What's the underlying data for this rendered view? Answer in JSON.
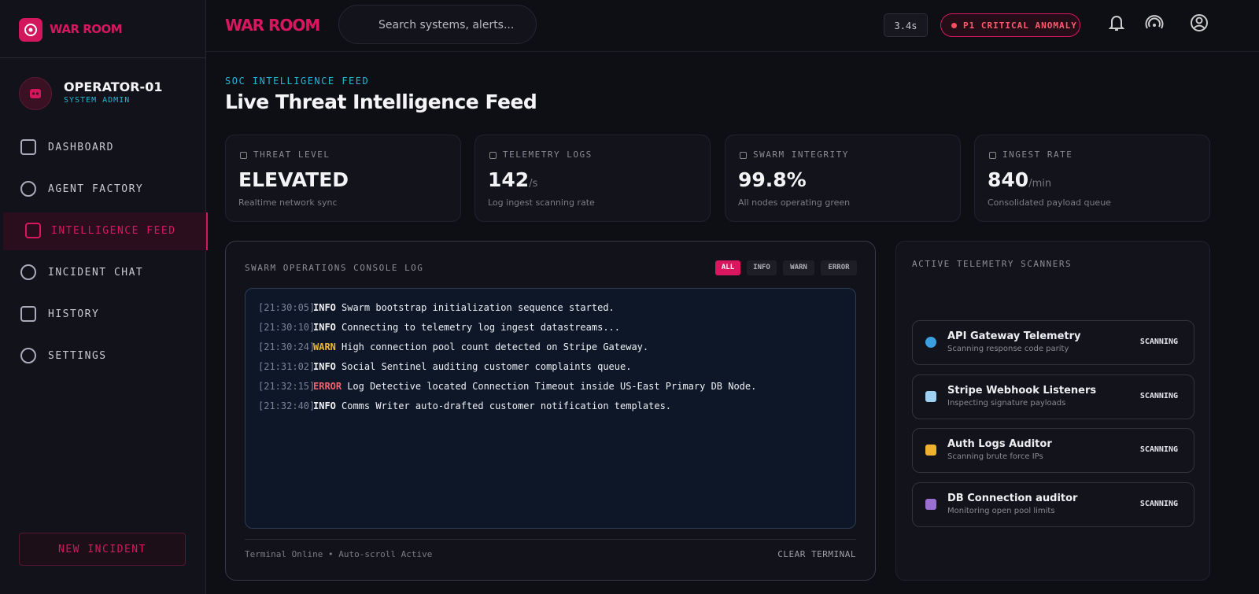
{
  "sidebar": {
    "brand": "WAR ROOM",
    "user": {
      "name": "OPERATOR-01",
      "role": "SYSTEM ADMIN"
    },
    "nav": [
      "DASHBOARD",
      "AGENT FACTORY",
      "INTELLIGENCE FEED",
      "INCIDENT CHAT",
      "HISTORY",
      "SETTINGS"
    ],
    "new_incident": "NEW INCIDENT"
  },
  "topbar": {
    "brand": "WAR ROOM",
    "search_placeholder": "Search systems, alerts...",
    "latency": "3.4s",
    "alert": "P1 CRITICAL ANOMALY"
  },
  "header": {
    "eyebrow": "SOC INTELLIGENCE FEED",
    "title": "Live Threat Intelligence Feed"
  },
  "stats": [
    {
      "label": "THREAT LEVEL",
      "value": "ELEVATED",
      "note": "Realtime network sync"
    },
    {
      "label": "TELEMETRY LOGS",
      "value": 142,
      "unit": "/s",
      "note": "Log ingest scanning rate"
    },
    {
      "label": "SWARM INTEGRITY",
      "value": "99.8%",
      "note": "All nodes operating green"
    },
    {
      "label": "INGEST RATE",
      "value": 840,
      "unit": "/min",
      "note": "Consolidated payload queue"
    }
  ],
  "console": {
    "title": "SWARM OPERATIONS CONSOLE LOG",
    "filters": [
      "ALL",
      "INFO",
      "WARN",
      "ERROR"
    ],
    "logs": [
      {
        "time": "[21:30:05]",
        "level": "INFO",
        "level_color": "#f2f2f5",
        "message": "Swarm bootstrap initialization sequence started."
      },
      {
        "time": "[21:30:10]",
        "level": "INFO",
        "level_color": "#f2f2f5",
        "message": "Connecting to telemetry log ingest datastreams..."
      },
      {
        "time": "[21:30:24]",
        "level": "WARN",
        "level_color": "#f4b731",
        "message": "High connection pool count detected on Stripe Gateway."
      },
      {
        "time": "[21:31:02]",
        "level": "INFO",
        "level_color": "#f2f2f5",
        "message": "Social Sentinel auditing customer complaints queue."
      },
      {
        "time": "[21:32:15]",
        "level": "ERROR",
        "level_color": "#f0606d",
        "message": "Log Detective located Connection Timeout inside US-East Primary DB Node."
      },
      {
        "time": "[21:32:40]",
        "level": "INFO",
        "level_color": "#f2f2f5",
        "message": "Comms Writer auto-drafted customer notification templates."
      }
    ],
    "footer_status": "Terminal Online • Auto-scroll Active",
    "clear": "CLEAR TERMINAL"
  },
  "scanners": {
    "title": "ACTIVE TELEMETRY SCANNERS",
    "items": [
      {
        "name": "API Gateway Telemetry",
        "desc": "Scanning response code parity",
        "status": "SCANNING"
      },
      {
        "name": "Stripe Webhook Listeners",
        "desc": "Inspecting signature payloads",
        "status": "SCANNING"
      },
      {
        "name": "Auth Logs Auditor",
        "desc": "Scanning brute force IPs",
        "status": "SCANNING"
      },
      {
        "name": "DB Connection auditor",
        "desc": "Monitoring open pool limits",
        "status": "SCANNING"
      }
    ]
  }
}
